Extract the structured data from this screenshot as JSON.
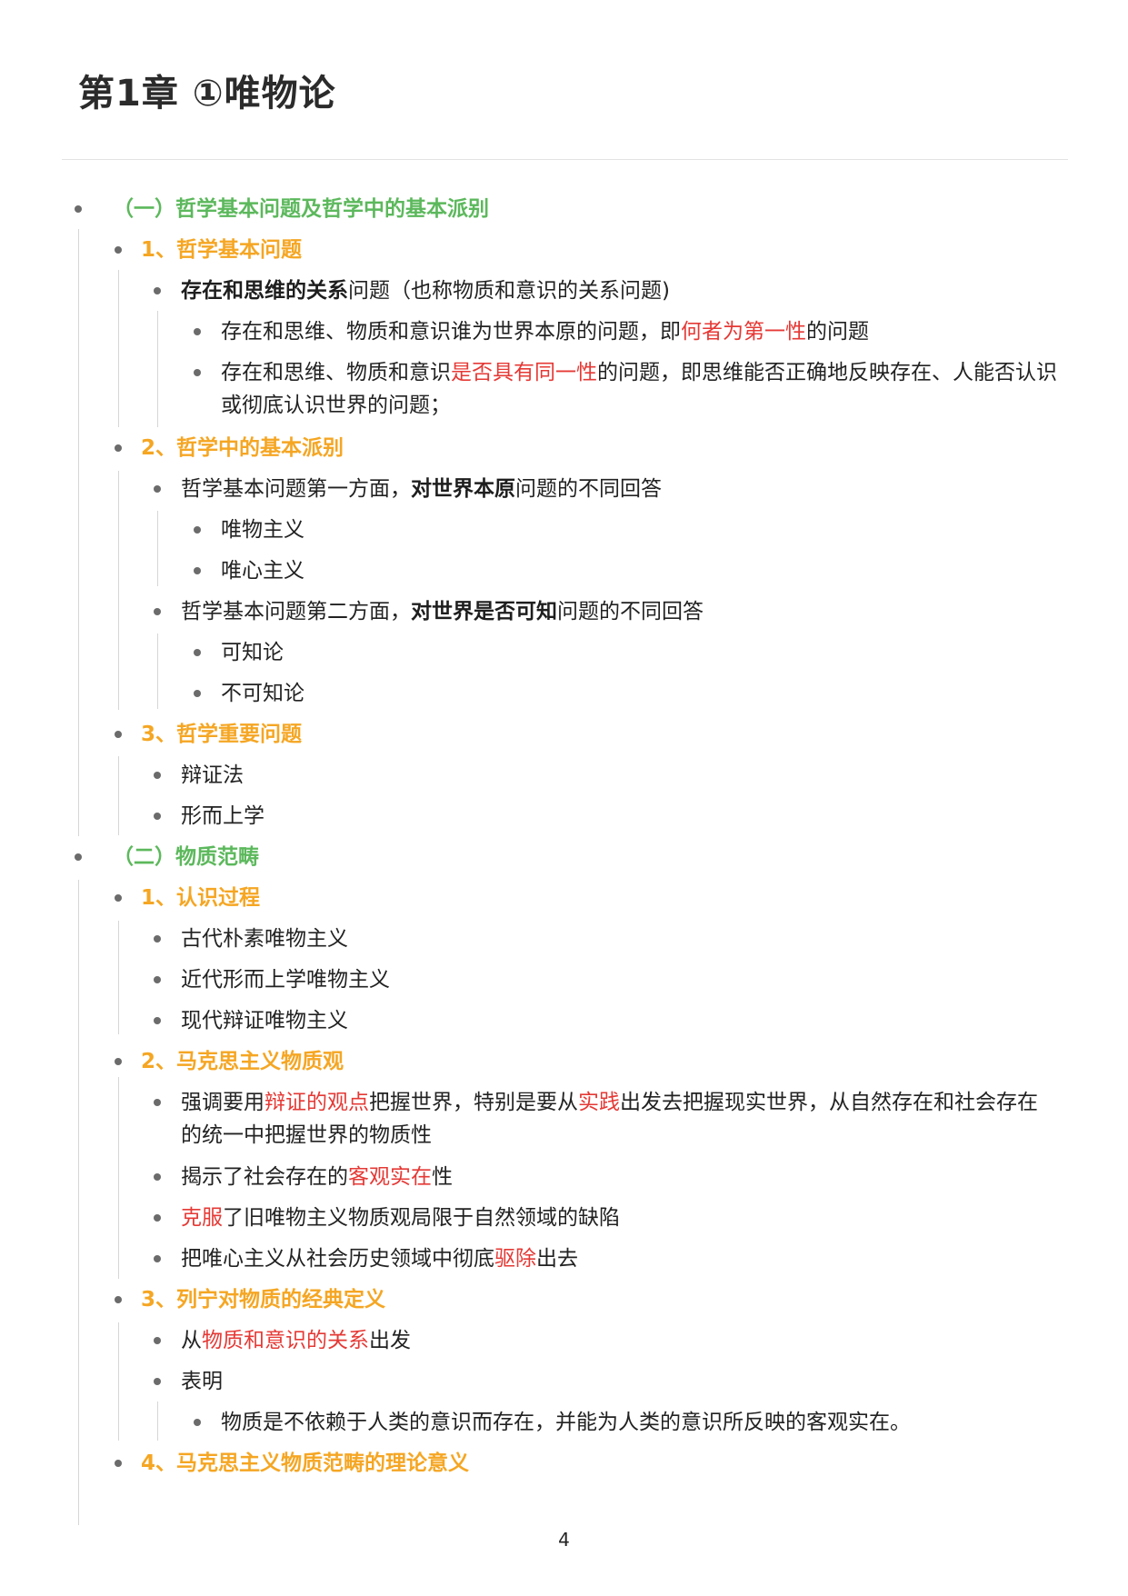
{
  "title": "第1章 ①唯物论",
  "page_number": "4",
  "sec1": {
    "heading": "（一）哲学基本问题及哲学中的基本派别",
    "sub1": {
      "heading": "1、哲学基本问题",
      "item1": {
        "bold": "存在和思维的关系",
        "rest": "问题（也称物质和意识的关系问题)"
      },
      "item1a": {
        "pre": "存在和思维、物质和意识谁为世界本原的问题，即",
        "red": "何者为第一性",
        "post": "的问题"
      },
      "item1b": {
        "pre": "存在和思维、物质和意识",
        "red": "是否具有同一性",
        "post": "的问题，即思维能否正确地反映存在、人能否认识或彻底认识世界的问题；"
      }
    },
    "sub2": {
      "heading": "2、哲学中的基本派别",
      "item1": {
        "pre": "哲学基本问题第一方面，",
        "bold": "对世界本原",
        "post": "问题的不同回答"
      },
      "item1a": "唯物主义",
      "item1b": "唯心主义",
      "item2": {
        "pre": "哲学基本问题第二方面，",
        "bold": "对世界是否可知",
        "post": "问题的不同回答"
      },
      "item2a": "可知论",
      "item2b": "不可知论"
    },
    "sub3": {
      "heading": "3、哲学重要问题",
      "item1": "辩证法",
      "item2": "形而上学"
    }
  },
  "sec2": {
    "heading": "（二）物质范畴",
    "sub1": {
      "heading": "1、认识过程",
      "item1": "古代朴素唯物主义",
      "item2": "近代形而上学唯物主义",
      "item3": "现代辩证唯物主义"
    },
    "sub2": {
      "heading": "2、马克思主义物质观",
      "item1": {
        "pre": "强调要用",
        "red1": "辩证的观点",
        "mid": "把握世界，特别是要从",
        "red2": "实践",
        "post": "出发去把握现实世界，从自然存在和社会存在的统一中把握世界的物质性"
      },
      "item2": {
        "pre": "揭示了社会存在的",
        "red": "客观实在",
        "post": "性"
      },
      "item3": {
        "red": "克服",
        "post": "了旧唯物主义物质观局限于自然领域的缺陷"
      },
      "item4": {
        "pre": "把唯心主义从社会历史领域中彻底",
        "red": "驱除",
        "post": "出去"
      }
    },
    "sub3": {
      "heading": "3、列宁对物质的经典定义",
      "item1": {
        "pre": "从",
        "red": "物质和意识的关系",
        "post": "出发"
      },
      "item2": "表明",
      "item2a": "物质是不依赖于人类的意识而存在，并能为人类的意识所反映的客观实在。"
    },
    "sub4": {
      "heading": "4、马克思主义物质范畴的理论意义"
    }
  }
}
